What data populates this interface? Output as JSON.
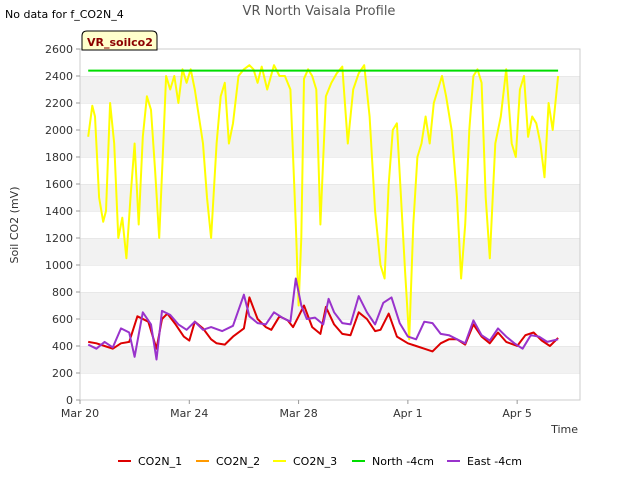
{
  "note": "No data for f_CO2N_4",
  "tag": "VR_soilco2",
  "chart_data": {
    "type": "line",
    "title": "VR North Vaisala Profile",
    "xlabel": "Time",
    "ylabel": "Soil CO2 (mV)",
    "ylim": [
      0,
      2600
    ],
    "xlim": [
      0,
      18.3
    ],
    "y_ticks": [
      0,
      200,
      400,
      600,
      800,
      1000,
      1200,
      1400,
      1600,
      1800,
      2000,
      2200,
      2400,
      2600
    ],
    "x_ticks": [
      {
        "day": 0,
        "label": "Mar 20"
      },
      {
        "day": 4,
        "label": "Mar 24"
      },
      {
        "day": 8,
        "label": "Mar 28"
      },
      {
        "day": 12,
        "label": "Apr 1"
      },
      {
        "day": 16,
        "label": "Apr 5"
      }
    ],
    "grid": true,
    "legend_position": "bottom",
    "series": [
      {
        "name": "CO2N_1",
        "color": "#dd0000",
        "x": [
          0.3,
          0.6,
          0.9,
          1.2,
          1.5,
          1.8,
          2.1,
          2.5,
          2.8,
          3.0,
          3.2,
          3.5,
          3.8,
          4.0,
          4.2,
          4.5,
          4.8,
          5.0,
          5.3,
          5.6,
          6.0,
          6.2,
          6.5,
          6.8,
          7.0,
          7.3,
          7.6,
          7.8,
          8.0,
          8.2,
          8.5,
          8.8,
          9.0,
          9.3,
          9.6,
          9.9,
          10.2,
          10.5,
          10.8,
          11.0,
          11.3,
          11.6,
          12.0,
          12.3,
          12.6,
          12.9,
          13.2,
          13.5,
          13.8,
          14.1,
          14.4,
          14.7,
          15.0,
          15.3,
          15.6,
          16.0,
          16.3,
          16.6,
          16.9,
          17.2,
          17.5
        ],
        "y": [
          430,
          420,
          400,
          380,
          420,
          430,
          620,
          580,
          380,
          600,
          640,
          560,
          470,
          440,
          580,
          530,
          450,
          420,
          410,
          470,
          530,
          760,
          600,
          540,
          520,
          620,
          590,
          540,
          620,
          700,
          540,
          490,
          690,
          560,
          490,
          480,
          650,
          600,
          510,
          520,
          640,
          470,
          420,
          400,
          380,
          360,
          420,
          450,
          450,
          410,
          560,
          470,
          420,
          500,
          430,
          400,
          480,
          500,
          440,
          400,
          460
        ]
      },
      {
        "name": "CO2N_2",
        "color": "#ff9900",
        "x": [],
        "y": []
      },
      {
        "name": "CO2N_3",
        "color": "#ffff00",
        "x": [
          0.3,
          0.45,
          0.55,
          0.7,
          0.85,
          0.95,
          1.1,
          1.25,
          1.4,
          1.55,
          1.7,
          1.85,
          2.0,
          2.15,
          2.3,
          2.45,
          2.6,
          2.75,
          2.9,
          3.05,
          3.15,
          3.3,
          3.45,
          3.6,
          3.75,
          3.9,
          4.05,
          4.2,
          4.35,
          4.5,
          4.65,
          4.8,
          5.0,
          5.15,
          5.3,
          5.45,
          5.6,
          5.8,
          6.0,
          6.2,
          6.35,
          6.5,
          6.65,
          6.85,
          7.1,
          7.3,
          7.5,
          7.7,
          7.9,
          8.0,
          8.1,
          8.2,
          8.35,
          8.5,
          8.65,
          8.8,
          9.0,
          9.2,
          9.4,
          9.6,
          9.8,
          10.0,
          10.2,
          10.4,
          10.6,
          10.8,
          11.0,
          11.15,
          11.3,
          11.45,
          11.6,
          11.75,
          11.9,
          12.05,
          12.2,
          12.35,
          12.5,
          12.65,
          12.8,
          12.95,
          13.1,
          13.25,
          13.4,
          13.6,
          13.8,
          13.95,
          14.1,
          14.25,
          14.4,
          14.55,
          14.7,
          14.85,
          15.0,
          15.2,
          15.4,
          15.6,
          15.8,
          15.95,
          16.1,
          16.25,
          16.4,
          16.55,
          16.7,
          16.85,
          17.0,
          17.15,
          17.3,
          17.5
        ],
        "y": [
          1950,
          2180,
          2100,
          1500,
          1320,
          1400,
          2200,
          1900,
          1200,
          1350,
          1050,
          1500,
          1900,
          1300,
          1950,
          2250,
          2150,
          1700,
          1200,
          1900,
          2400,
          2300,
          2400,
          2200,
          2450,
          2350,
          2450,
          2300,
          2100,
          1900,
          1500,
          1200,
          1900,
          2250,
          2350,
          1900,
          2050,
          2400,
          2450,
          2480,
          2450,
          2350,
          2470,
          2300,
          2480,
          2400,
          2400,
          2300,
          1300,
          700,
          1200,
          2380,
          2450,
          2400,
          2300,
          1300,
          2250,
          2350,
          2420,
          2470,
          1900,
          2300,
          2420,
          2480,
          2100,
          1400,
          1000,
          900,
          1600,
          2000,
          2050,
          1500,
          950,
          450,
          1300,
          1800,
          1900,
          2100,
          1900,
          2200,
          2300,
          2400,
          2250,
          2000,
          1500,
          900,
          1300,
          2000,
          2400,
          2450,
          2350,
          1500,
          1050,
          1900,
          2100,
          2450,
          1900,
          1800,
          2300,
          2400,
          1950,
          2100,
          2050,
          1900,
          1650,
          2200,
          2000,
          2400
        ]
      },
      {
        "name": "North -4cm",
        "color": "#00dd00",
        "x": [
          0.3,
          17.5
        ],
        "y": [
          2440,
          2440
        ]
      },
      {
        "name": "East -4cm",
        "color": "#9933cc",
        "x": [
          0.3,
          0.6,
          0.9,
          1.2,
          1.5,
          1.8,
          2.0,
          2.3,
          2.6,
          2.8,
          3.0,
          3.3,
          3.6,
          3.9,
          4.2,
          4.5,
          4.8,
          5.2,
          5.6,
          6.0,
          6.2,
          6.5,
          6.8,
          7.1,
          7.4,
          7.7,
          7.9,
          8.1,
          8.3,
          8.6,
          8.9,
          9.1,
          9.3,
          9.6,
          9.9,
          10.2,
          10.5,
          10.8,
          11.1,
          11.4,
          11.7,
          12.0,
          12.3,
          12.6,
          12.9,
          13.2,
          13.5,
          13.8,
          14.1,
          14.4,
          14.7,
          15.0,
          15.3,
          15.6,
          15.9,
          16.2,
          16.5,
          16.8,
          17.1,
          17.5
        ],
        "y": [
          410,
          380,
          430,
          390,
          530,
          500,
          320,
          650,
          560,
          300,
          660,
          630,
          560,
          520,
          580,
          520,
          540,
          510,
          550,
          780,
          620,
          570,
          560,
          650,
          610,
          580,
          900,
          700,
          600,
          610,
          560,
          750,
          650,
          570,
          560,
          770,
          650,
          560,
          720,
          760,
          570,
          470,
          450,
          580,
          570,
          490,
          480,
          450,
          420,
          590,
          480,
          440,
          530,
          470,
          420,
          380,
          480,
          470,
          430,
          450
        ]
      }
    ]
  }
}
